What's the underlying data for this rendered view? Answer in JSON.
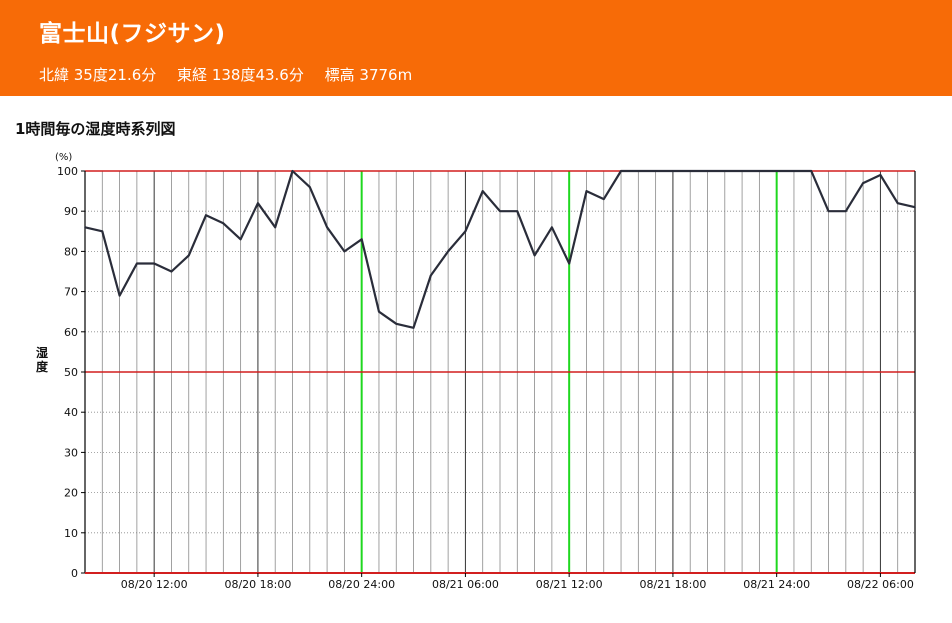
{
  "header": {
    "station_name": "富士山(フジサン)",
    "latitude": "北緯 35度21.6分",
    "longitude": "東経 138度43.6分",
    "elevation": "標高 3776m",
    "background_color": "#f76b07"
  },
  "chart_data": {
    "type": "line",
    "title": "1時間毎の湿度時系列図",
    "ylabel": "湿度",
    "yunit": "(%)",
    "ylim": [
      0,
      100
    ],
    "yticks": [
      0,
      10,
      20,
      30,
      40,
      50,
      60,
      70,
      80,
      90,
      100
    ],
    "x_start": "08/20 08:00",
    "x_end": "08/22 06:00",
    "x_interval": "1 hour",
    "xtick_labels": [
      "08/20 12:00",
      "08/20 18:00",
      "08/20 24:00",
      "08/21 06:00",
      "08/21 12:00",
      "08/21 18:00",
      "08/21 24:00",
      "08/22 06:00"
    ],
    "day_boundaries": [
      "08/20 24:00",
      "08/21 12:00",
      "08/21 24:00"
    ],
    "reference_lines": [
      50,
      100
    ],
    "grid": true,
    "colors": {
      "line": "#2a2d3a",
      "reference": "#d21f1f",
      "day_boundary": "#1fd81f",
      "grid_minor": "#8a8a8a",
      "grid_major": "#333333"
    },
    "series": [
      {
        "values": [
          86,
          85,
          69,
          77,
          77,
          75,
          79,
          89,
          87,
          83,
          92,
          86,
          100,
          96,
          86,
          80,
          83,
          65,
          62,
          61,
          74,
          80,
          85,
          95,
          90,
          90,
          79,
          86,
          77,
          95,
          93,
          100,
          100,
          100,
          100,
          100,
          100,
          100,
          100,
          100,
          100,
          100,
          100,
          90,
          90,
          97,
          99,
          92,
          91
        ]
      }
    ]
  }
}
